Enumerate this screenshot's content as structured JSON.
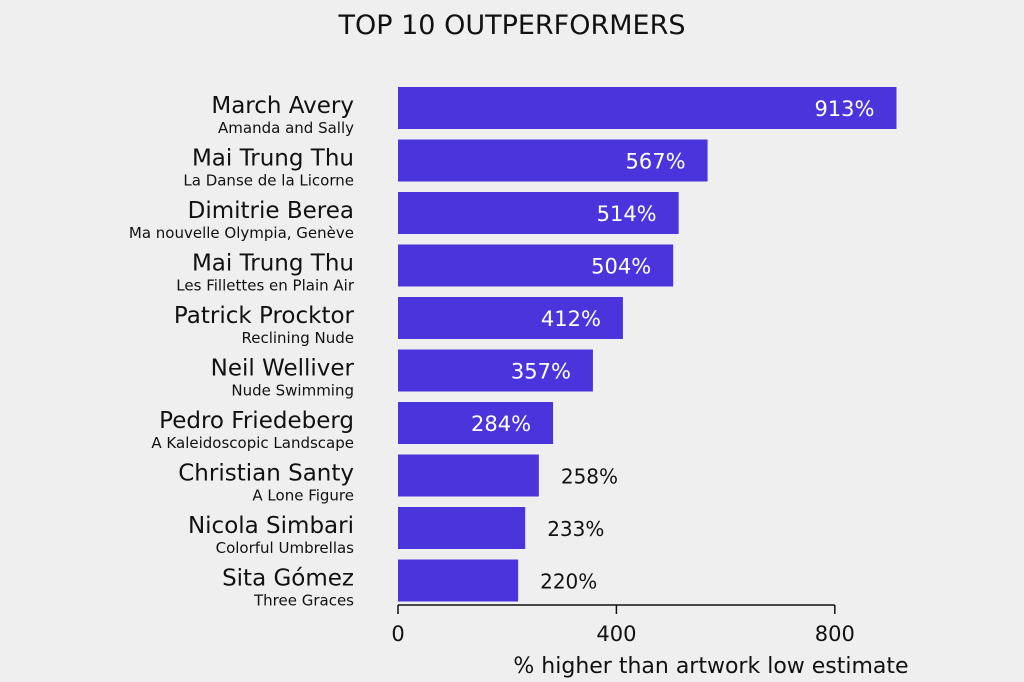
{
  "chart_data": {
    "type": "bar",
    "orientation": "horizontal",
    "title": "TOP 10 OUTPERFORMERS",
    "xlabel": "% higher than artwork low estimate",
    "ylabel": "",
    "xlim": [
      0,
      800
    ],
    "xticks": [
      0,
      400,
      800
    ],
    "bar_color": "#4a35dd",
    "grid": false,
    "value_suffix": "%",
    "categories": [
      {
        "artist": "March Avery",
        "work": "Amanda and Sally",
        "value": 913
      },
      {
        "artist": "Mai Trung Thu",
        "work": "La Danse de la Licorne",
        "value": 567
      },
      {
        "artist": "Dimitrie Berea",
        "work": "Ma nouvelle Olympia, Genève",
        "value": 514
      },
      {
        "artist": "Mai Trung Thu",
        "work": "Les Fillettes en Plain Air",
        "value": 504
      },
      {
        "artist": "Patrick Procktor",
        "work": "Reclining Nude",
        "value": 412
      },
      {
        "artist": "Neil Welliver",
        "work": "Nude Swimming",
        "value": 357
      },
      {
        "artist": "Pedro Friedeberg",
        "work": "A Kaleidoscopic Landscape",
        "value": 284
      },
      {
        "artist": "Christian Santy",
        "work": "A Lone Figure",
        "value": 258
      },
      {
        "artist": "Nicola Simbari",
        "work": "Colorful Umbrellas",
        "value": 233
      },
      {
        "artist": "Sita Gómez",
        "work": "Three Graces",
        "value": 220
      }
    ]
  }
}
